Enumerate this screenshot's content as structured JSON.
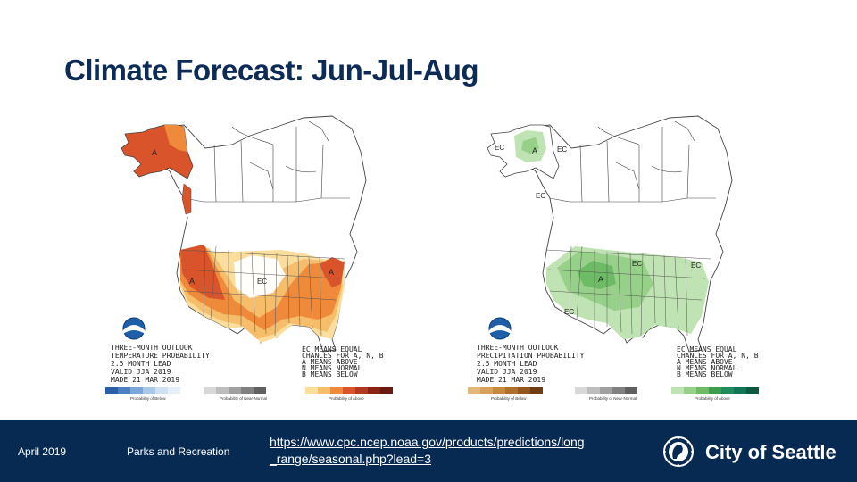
{
  "slide": {
    "title": "Climate Forecast: Jun-Jul-Aug"
  },
  "temperature_map": {
    "caption": [
      "THREE-MONTH OUTLOOK",
      "TEMPERATURE PROBABILITY",
      "2.5 MONTH LEAD",
      "VALID JJA 2019",
      "MADE 21 MAR 2019"
    ],
    "legend_key": [
      "EC MEANS EQUAL",
      "CHANCES FOR A, N, B",
      "A MEANS ABOVE",
      "N MEANS NORMAL",
      "B MEANS BELOW"
    ],
    "labels": [
      "A",
      "A",
      "A",
      "EC"
    ],
    "scale_groups": [
      "Probability of Below",
      "Probability of Near-Normal",
      "Probability of Above"
    ],
    "colors": {
      "above_dark": "#d9542b",
      "above_mid": "#ee8a3a",
      "above_light": "#f6bd6a",
      "above_faint": "#fbdd9c"
    }
  },
  "precipitation_map": {
    "caption": [
      "THREE-MONTH OUTLOOK",
      "PRECIPITATION PROBABILITY",
      "2.5 MONTH LEAD",
      "VALID JJA 2019",
      "MADE 21 MAR 2019"
    ],
    "legend_key": [
      "EC MEANS EQUAL",
      "CHANCES FOR A, N, B",
      "A MEANS ABOVE",
      "N MEANS NORMAL",
      "B MEANS BELOW"
    ],
    "labels": [
      "EC",
      "A",
      "EC",
      "EC",
      "EC",
      "A",
      "EC",
      "EC"
    ],
    "scale_groups": [
      "Probability of Below",
      "Probability of Near-Normal",
      "Probability of Above"
    ],
    "colors": {
      "above_light": "#bfe3b2",
      "above_mid": "#97d089",
      "above_dark": "#6dbb64"
    }
  },
  "footer": {
    "date": "April 2019",
    "department": "Parks and Recreation",
    "link": "https://www.cpc.ncep.noaa.gov/products/predictions/long_range/seasonal.php?lead=3",
    "logo_text": "City of Seattle",
    "logo_icon": "seattle-seal-icon",
    "background": "#062a52"
  }
}
